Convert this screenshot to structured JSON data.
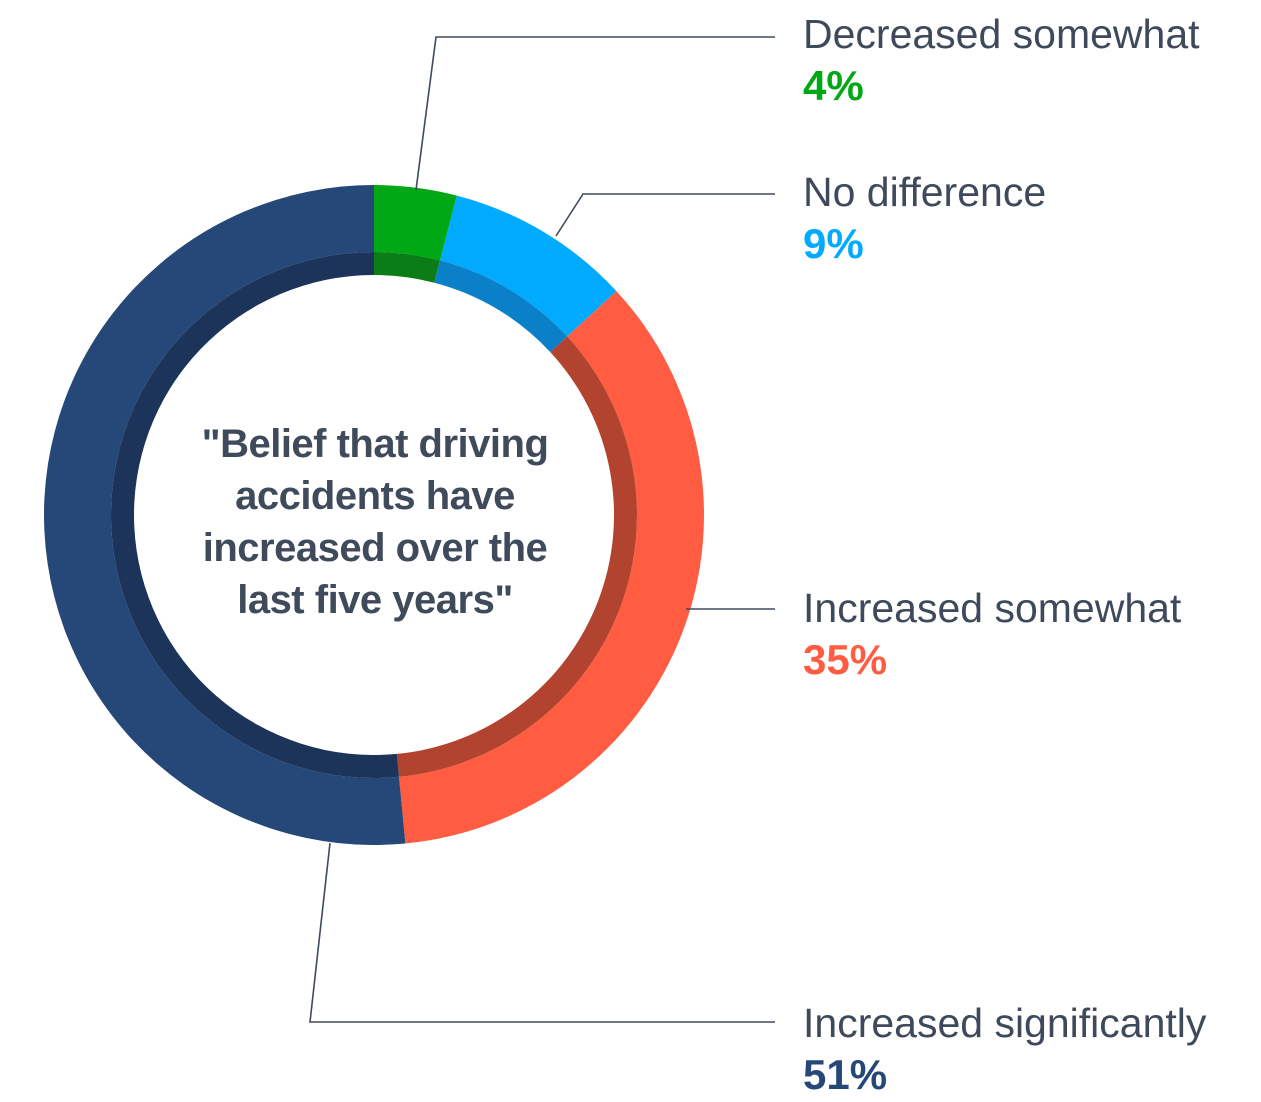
{
  "chart_data": {
    "type": "pie",
    "variant": "donut",
    "center_title": "\"Belief that driving accidents have increased over the last five years\"",
    "center_title_lines": [
      "\"Belief that driving",
      "accidents have",
      "increased over the",
      "last five years\""
    ],
    "slices": [
      {
        "label": "Decreased somewhat",
        "value": 4,
        "value_label": "4%",
        "color": "#00a815",
        "inner_color": "#0b7d17"
      },
      {
        "label": "No difference",
        "value": 9,
        "value_label": "9%",
        "color": "#00aaff",
        "inner_color": "#0a80c8"
      },
      {
        "label": "Increased somewhat",
        "value": 35,
        "value_label": "35%",
        "color": "#ff5c42",
        "inner_color": "#b2442f"
      },
      {
        "label": "Increased significantly",
        "value": 51,
        "value_label": "51%",
        "color": "#264878",
        "inner_color": "#1c335a"
      }
    ],
    "start_angle": "12 o'clock",
    "direction": "clockwise",
    "leader_line_color": "#3e4a5b",
    "label_text_color": "#3e4a5b"
  }
}
